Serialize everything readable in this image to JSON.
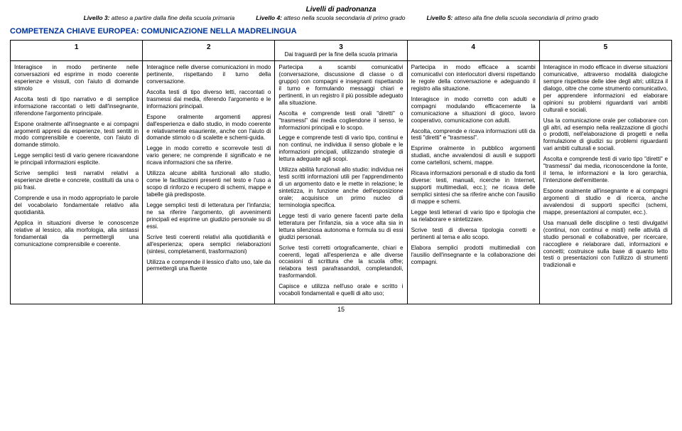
{
  "header": {
    "title": "Livelli di padronanza",
    "levels": [
      {
        "label": "Livello 3:",
        "text": " atteso a partire dalla fine della scuola primaria"
      },
      {
        "label": "Livello 4:",
        "text": " atteso nella scuola secondaria di primo grado"
      },
      {
        "label": "Livello 5:",
        "text": " atteso alla fine della scuola secondaria di primo grado"
      }
    ]
  },
  "competenza": "COMPETENZA CHIAVE EUROPEA: COMUNICAZIONE NELLA MADRELINGUA",
  "columns": [
    {
      "num": "1",
      "sub": ""
    },
    {
      "num": "2",
      "sub": ""
    },
    {
      "num": "3",
      "sub": "Dai traguardi per la fine della scuola primaria"
    },
    {
      "num": "4",
      "sub": ""
    },
    {
      "num": "5",
      "sub": ""
    }
  ],
  "cells": {
    "c1": [
      "Interagisce in modo pertinente nelle conversazioni ed esprime in modo coerente esperienze e vissuti, con l'aiuto di domande stimolo",
      "Ascolta testi di tipo narrativo e di semplice informazione raccontati o letti dall'insegnante, riferendone l'argomento principale.",
      "Espone oralmente all'insegnante e ai compagni argomenti appresi da esperienze, testi sentiti in modo comprensibile e coerente, con l'aiuto di domande stimolo.",
      "Legge semplici testi di vario genere ricavandone le principali informazioni esplicite.",
      "Scrive semplici testi narrativi relativi a esperienze dirette e concrete, costituiti da una o più frasi.",
      "Comprende e usa in modo appropriato le parole del vocabolario fondamentale relativo alla quotidianità.",
      "Applica in situazioni diverse le conoscenze relative al lessico, alla morfologia, alla sintassi fondamentali da permettergli una comunicazione comprensibile e coerente."
    ],
    "c2": [
      "Interagisce nelle diverse comunicazioni in modo pertinente, rispettando il turno della conversazione.",
      "Ascolta testi di tipo diverso letti, raccontati o trasmessi dai media, riferendo l'argomento e le informazioni principali.",
      "Espone oralmente argomenti appresi dall'esperienza e dallo studio, in modo coerente e relativamente esauriente, anche con l'aiuto di domande stimolo o di scalette e schemi-guida.",
      "Legge in modo corretto e scorrevole testi di vario genere; ne comprende il significato e ne ricava informazioni che sa riferire.",
      "Utilizza alcune abilità funzionali allo studio, come le facilitazioni presenti nel testo e l'uso a scopo di rinforzo e recupero di schemi, mappe e tabelle già predisposte.",
      "Legge semplici testi di letteratura per l'infanzia; ne sa riferire l'argomento, gli avvenimenti principali ed esprime un giudizio personale su di essi.",
      "Scrive testi coerenti relativi alla quotidianità e all'esperienza; opera semplici rielaborazioni (sintesi, completamenti, trasformazioni)",
      "Utilizza e comprende il lessico d'alto uso, tale da permettergli una fluente"
    ],
    "c3": [
      "Partecipa a scambi comunicativi (conversazione, discussione di classe o di gruppo) con compagni e insegnanti rispettando il turno e formulando messaggi chiari e pertinenti, in un registro il più possibile adeguato alla situazione.",
      "Ascolta e comprende testi orali \"diretti\" o \"trasmessi\" dai media cogliendone il senso, le informazioni principali e lo scopo.",
      "Legge e comprende testi di vario tipo, continui e non continui, ne individua il senso globale e le informazioni principali, utilizzando strategie di lettura adeguate agli scopi.",
      "Utilizza abilità funzionali allo studio: individua nei testi scritti informazioni utili per l'apprendimento di un argomento dato e le mette in relazione; le sintetizza, in funzione anche dell'esposizione orale; acquisisce un primo nucleo di terminologia specifica.",
      "Legge testi di vario genere facenti parte della letteratura per l'infanzia, sia a voce alta sia in lettura silenziosa autonoma e formula su di essi giudizi personali.",
      "Scrive testi corretti ortograficamente, chiari e coerenti, legati all'esperienza e alle diverse occasioni di scrittura che la scuola offre; rielabora testi parafrasandoli, completandoli, trasformandoli.",
      "Capisce e utilizza nell'uso orale e scritto i vocaboli fondamentali e quelli di alto uso;"
    ],
    "c4": [
      "Partecipa in modo efficace a scambi comunicativi con interlocutori diversi rispettando le regole della conversazione e adeguando il registro alla situazione.",
      "Interagisce in modo corretto con adulti e compagni modulando efficacemente la comunicazione a situazioni di gioco, lavoro cooperativo, comunicazione con adulti.",
      "Ascolta, comprende e ricava informazioni utili da testi \"diretti\" e \"trasmessi\".",
      "Esprime oralmente in pubblico argomenti studiati, anche avvalendosi di ausili e supporti come cartelloni, schemi, mappe.",
      "Ricava informazioni personali e di studio da fonti diverse: testi, manuali, ricerche in Internet, supporti multimediali, ecc.); ne ricava delle semplici sintesi che sa riferire anche con l'ausilio di mappe e schemi.",
      "Legge testi letterari di vario tipo e tipologia che sa rielaborare e sintetizzare.",
      "Scrive testi di diversa tipologia corretti e pertinenti al tema e allo scopo.",
      "Elabora semplici prodotti multimediali con l'ausilio dell'insegnante e la collaborazione dei compagni."
    ],
    "c5": [
      "Interagisce in modo efficace in diverse situazioni comunicative, attraverso modalità dialogiche sempre rispettose delle idee degli altri; utilizza il dialogo, oltre che come strumento comunicativo, per apprendere informazioni ed elaborare opinioni su problemi riguardanti vari ambiti culturali e sociali.",
      "Usa la comunicazione orale per collaborare con gli altri, ad esempio nella realizzazione di giochi o prodotti, nell'elaborazione di progetti e nella formulazione di giudizi su problemi riguardanti vari ambiti culturali e sociali.",
      "Ascolta e comprende testi di vario tipo \"diretti\" e \"trasmessi\" dai media, riconoscendone la fonte, il tema, le informazioni e la loro gerarchia, l'intenzione dell'emittente.",
      "Espone oralmente all'insegnante e ai compagni argomenti di studio e di ricerca, anche avvalendosi di supporti specifici (schemi, mappe, presentazioni al computer, ecc.).",
      "Usa manuali delle discipline o testi divulgativi (continui, non continui e misti) nelle attività di studio personali e collaborative, per ricercare, raccogliere e rielaborare dati, informazioni e concetti; costruisce sulla base di quanto letto testi o presentazioni con l'utilizzo di strumenti tradizionali e"
    ]
  },
  "pageNum": "15"
}
